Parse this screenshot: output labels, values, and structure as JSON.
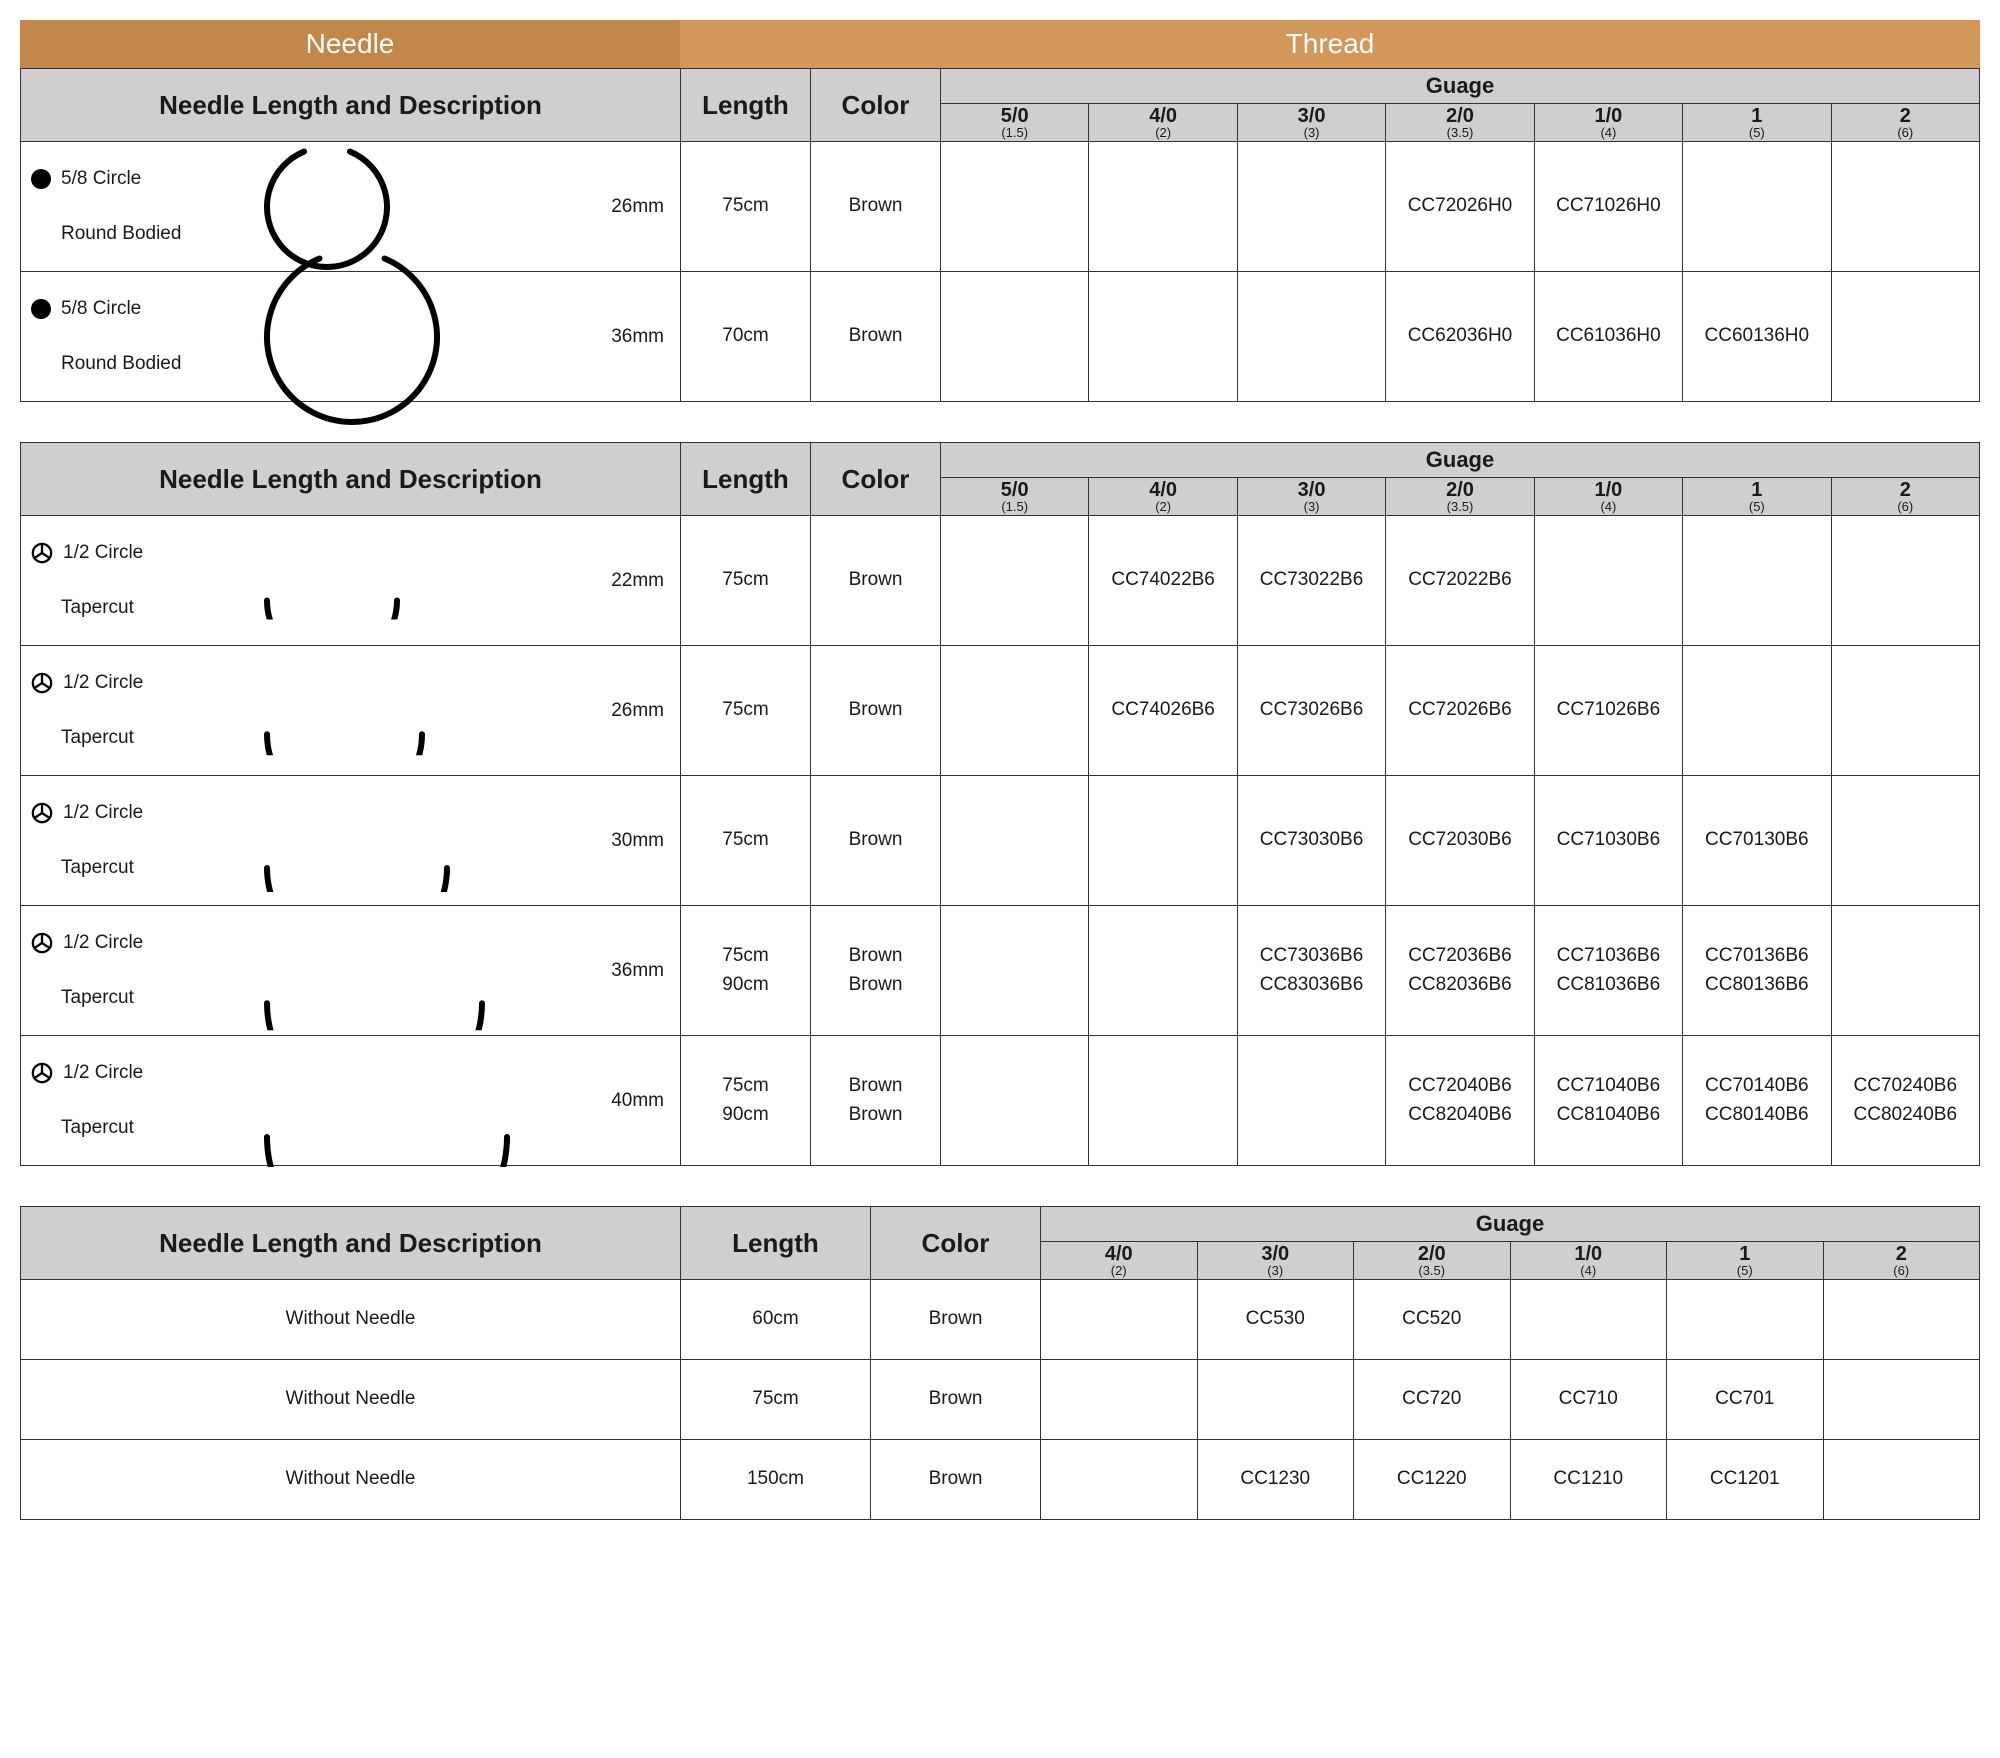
{
  "colors": {
    "needle_header_bg": "#c4874a",
    "thread_header_bg": "#d3975a",
    "header_text": "#ffffff",
    "subheader_bg": "#cfcfcf",
    "border": "#333333",
    "text": "#1a1a1a"
  },
  "top_headers": {
    "needle": "Needle",
    "thread": "Thread"
  },
  "common_labels": {
    "needle_desc": "Needle Length and Description",
    "length": "Length",
    "color": "Color",
    "gauge": "Guage"
  },
  "gauges_7": [
    {
      "main": "5/0",
      "sub": "(1.5)"
    },
    {
      "main": "4/0",
      "sub": "(2)"
    },
    {
      "main": "3/0",
      "sub": "(3)"
    },
    {
      "main": "2/0",
      "sub": "(3.5)"
    },
    {
      "main": "1/0",
      "sub": "(4)"
    },
    {
      "main": "1",
      "sub": "(5)"
    },
    {
      "main": "2",
      "sub": "(6)"
    }
  ],
  "gauges_6": [
    {
      "main": "4/0",
      "sub": "(2)"
    },
    {
      "main": "3/0",
      "sub": "(3)"
    },
    {
      "main": "2/0",
      "sub": "(3.5)"
    },
    {
      "main": "1/0",
      "sub": "(4)"
    },
    {
      "main": "1",
      "sub": "(5)"
    },
    {
      "main": "2",
      "sub": "(6)"
    }
  ],
  "table1": {
    "arc": {
      "type": "5/8-circle",
      "stroke_width": 6,
      "stroke": "#000000"
    },
    "rows": [
      {
        "icon": "dot",
        "line1": "5/8 Circle",
        "line2": "Round Bodied",
        "mm": "26mm",
        "arc_width": 120,
        "length": "75cm",
        "color": "Brown",
        "cells": [
          "",
          "",
          "",
          "CC72026H0",
          "CC71026H0",
          "",
          ""
        ]
      },
      {
        "icon": "dot",
        "line1": "5/8 Circle",
        "line2": "Round Bodied",
        "mm": "36mm",
        "arc_width": 170,
        "length": "70cm",
        "color": "Brown",
        "cells": [
          "",
          "",
          "",
          "CC62036H0",
          "CC61036H0",
          "CC60136H0",
          ""
        ]
      }
    ]
  },
  "table2": {
    "arc": {
      "type": "1/2-circle",
      "stroke_width": 6,
      "stroke": "#000000"
    },
    "rows": [
      {
        "icon": "wheel",
        "line1": "1/2 Circle",
        "line2": "Tapercut",
        "mm": "22mm",
        "arc_width": 130,
        "length": "75cm",
        "color": "Brown",
        "cells": [
          "",
          "CC74022B6",
          "CC73022B6",
          "CC72022B6",
          "",
          "",
          ""
        ]
      },
      {
        "icon": "wheel",
        "line1": "1/2 Circle",
        "line2": "Tapercut",
        "mm": "26mm",
        "arc_width": 155,
        "length": "75cm",
        "color": "Brown",
        "cells": [
          "",
          "CC74026B6",
          "CC73026B6",
          "CC72026B6",
          "CC71026B6",
          "",
          ""
        ]
      },
      {
        "icon": "wheel",
        "line1": "1/2 Circle",
        "line2": "Tapercut",
        "mm": "30mm",
        "arc_width": 180,
        "length": "75cm",
        "color": "Brown",
        "cells": [
          "",
          "",
          "CC73030B6",
          "CC72030B6",
          "CC71030B6",
          "CC70130B6",
          ""
        ]
      },
      {
        "icon": "wheel",
        "line1": "1/2 Circle",
        "line2": "Tapercut",
        "mm": "36mm",
        "arc_width": 215,
        "length": "75cm\n90cm",
        "color": "Brown\nBrown",
        "cells": [
          "",
          "",
          "CC73036B6\nCC83036B6",
          "CC72036B6\nCC82036B6",
          "CC71036B6\nCC81036B6",
          "CC70136B6\nCC80136B6",
          ""
        ]
      },
      {
        "icon": "wheel",
        "line1": "1/2 Circle",
        "line2": "Tapercut",
        "mm": "40mm",
        "arc_width": 240,
        "length": "75cm\n90cm",
        "color": "Brown\nBrown",
        "cells": [
          "",
          "",
          "",
          "CC72040B6\nCC82040B6",
          "CC71040B6\nCC81040B6",
          "CC70140B6\nCC80140B6",
          "CC70240B6\nCC80240B6"
        ]
      }
    ]
  },
  "table3": {
    "rows": [
      {
        "desc": "Without Needle",
        "length": "60cm",
        "color": "Brown",
        "cells": [
          "",
          "CC530",
          "CC520",
          "",
          "",
          ""
        ]
      },
      {
        "desc": "Without Needle",
        "length": "75cm",
        "color": "Brown",
        "cells": [
          "",
          "",
          "CC720",
          "CC710",
          "CC701",
          ""
        ]
      },
      {
        "desc": "Without Needle",
        "length": "150cm",
        "color": "Brown",
        "cells": [
          "",
          "CC1230",
          "CC1220",
          "CC1210",
          "CC1201",
          ""
        ]
      }
    ]
  }
}
